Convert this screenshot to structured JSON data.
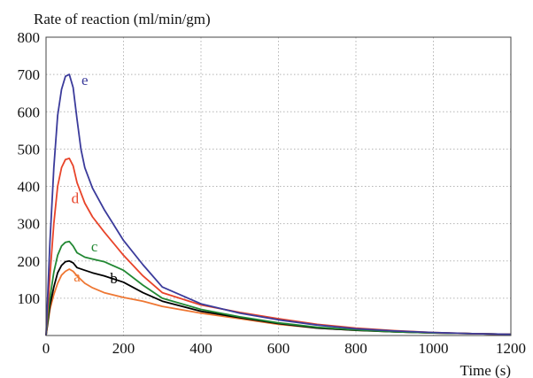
{
  "chart_data": {
    "type": "line",
    "title": "",
    "ylabel": "Rate of reaction (ml/min/gm)",
    "xlabel": "Time (s)",
    "xlim": [
      0,
      1200
    ],
    "ylim": [
      0,
      800
    ],
    "xticks": [
      "0",
      "200",
      "400",
      "600",
      "800",
      "1000",
      "1200"
    ],
    "yticks": [
      "100",
      "200",
      "300",
      "400",
      "500",
      "600",
      "700",
      "800"
    ],
    "grid": "dotted",
    "series": [
      {
        "name": "a",
        "color": "#ee7733",
        "x": [
          0,
          10,
          20,
          30,
          40,
          50,
          60,
          70,
          80,
          100,
          120,
          150,
          200,
          250,
          300,
          400,
          500,
          600,
          700,
          800,
          900,
          1000,
          1100,
          1200
        ],
        "y": [
          0,
          70,
          110,
          140,
          162,
          172,
          178,
          172,
          160,
          140,
          128,
          115,
          102,
          92,
          78,
          60,
          45,
          30,
          20,
          14,
          10,
          7,
          5,
          3
        ]
      },
      {
        "name": "b",
        "color": "#000000",
        "x": [
          0,
          10,
          20,
          30,
          40,
          50,
          60,
          70,
          80,
          100,
          120,
          150,
          200,
          250,
          300,
          400,
          500,
          600,
          700,
          800,
          900,
          1000,
          1100,
          1200
        ],
        "y": [
          0,
          80,
          130,
          168,
          188,
          198,
          200,
          195,
          182,
          175,
          168,
          160,
          143,
          115,
          92,
          65,
          48,
          32,
          20,
          14,
          10,
          7,
          5,
          3
        ]
      },
      {
        "name": "c",
        "color": "#228833",
        "x": [
          0,
          10,
          20,
          30,
          40,
          50,
          60,
          70,
          80,
          100,
          120,
          150,
          200,
          250,
          300,
          400,
          500,
          600,
          700,
          800,
          900,
          1000,
          1100,
          1200
        ],
        "y": [
          0,
          100,
          170,
          215,
          240,
          250,
          252,
          240,
          222,
          210,
          205,
          198,
          175,
          135,
          100,
          70,
          50,
          34,
          22,
          15,
          10,
          7,
          5,
          3
        ]
      },
      {
        "name": "d",
        "color": "#e8442a",
        "x": [
          0,
          10,
          20,
          30,
          40,
          50,
          60,
          70,
          80,
          100,
          120,
          150,
          200,
          250,
          300,
          400,
          500,
          600,
          700,
          800,
          900,
          1000,
          1100,
          1200
        ],
        "y": [
          0,
          160,
          300,
          400,
          450,
          472,
          475,
          455,
          410,
          355,
          318,
          278,
          215,
          160,
          115,
          82,
          62,
          45,
          30,
          20,
          13,
          8,
          5,
          3
        ]
      },
      {
        "name": "e",
        "color": "#3b3b9b",
        "x": [
          0,
          10,
          20,
          30,
          40,
          50,
          60,
          70,
          80,
          90,
          100,
          120,
          150,
          200,
          250,
          300,
          400,
          500,
          600,
          700,
          800,
          900,
          1000,
          1100,
          1200
        ],
        "y": [
          0,
          250,
          450,
          590,
          660,
          695,
          700,
          665,
          580,
          500,
          450,
          395,
          338,
          255,
          190,
          130,
          85,
          60,
          42,
          28,
          18,
          12,
          8,
          5,
          3
        ]
      }
    ],
    "labels": [
      {
        "text": "e",
        "x": 100,
        "y": 672,
        "color": "#3b3b9b"
      },
      {
        "text": "d",
        "x": 75,
        "y": 355,
        "color": "#e8442a"
      },
      {
        "text": "c",
        "x": 125,
        "y": 225,
        "color": "#228833"
      },
      {
        "text": "b",
        "x": 175,
        "y": 140,
        "color": "#000000"
      },
      {
        "text": "a",
        "x": 80,
        "y": 145,
        "color": "#ee7733"
      }
    ]
  }
}
